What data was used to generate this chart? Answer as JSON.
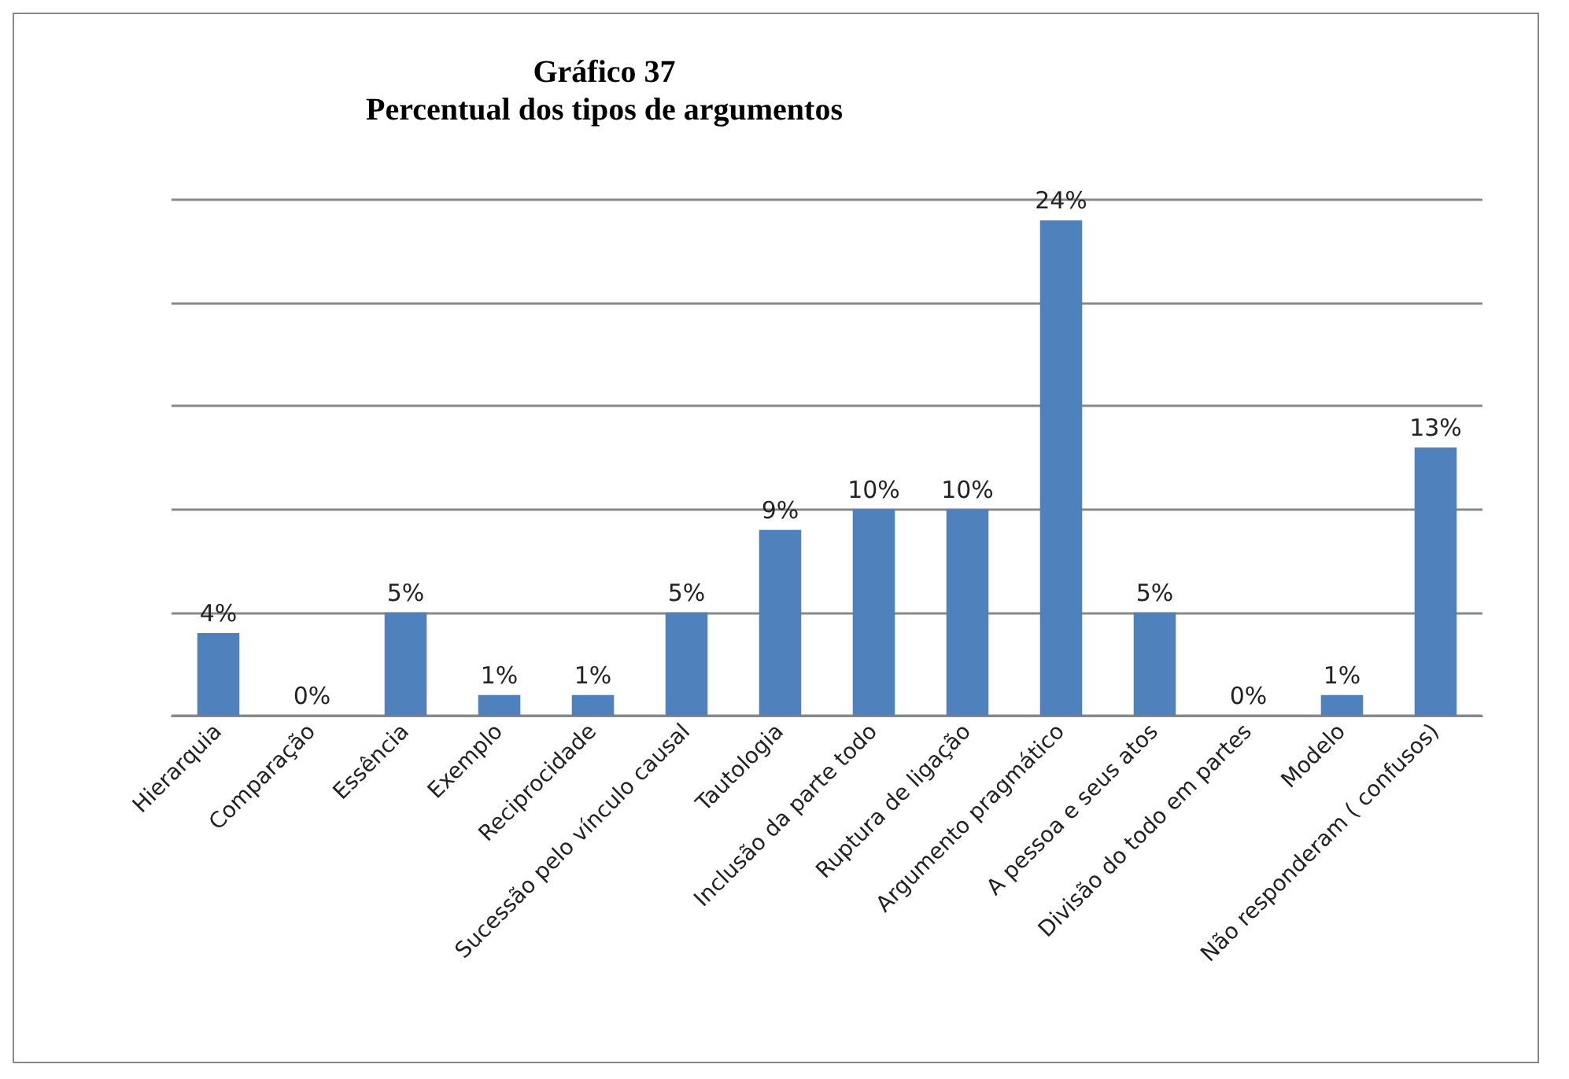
{
  "chart_data": {
    "type": "bar",
    "title": "Gráfico 37",
    "subtitle": "Percentual dos tipos de argumentos",
    "categories": [
      "Hierarquia",
      "Comparação",
      "Essência",
      "Exemplo",
      "Reciprocidade",
      "Sucessão pelo vínculo causal",
      "Tautologia",
      "Inclusão da parte todo",
      "Ruptura de ligação",
      "Argumento pragmático",
      "A pessoa e seus atos",
      "Divisão do todo em partes",
      "Modelo",
      "Não responderam ( confusos)"
    ],
    "values": [
      4,
      0,
      5,
      1,
      1,
      5,
      9,
      10,
      10,
      24,
      5,
      0,
      1,
      13
    ],
    "value_labels": [
      "4%",
      "0%",
      "5%",
      "1%",
      "1%",
      "5%",
      "9%",
      "10%",
      "10%",
      "24%",
      "5%",
      "0%",
      "1%",
      "13%"
    ],
    "color": "#4f81bd",
    "ylim": [
      0,
      25
    ],
    "grid": "y",
    "tick_labels": "x"
  }
}
